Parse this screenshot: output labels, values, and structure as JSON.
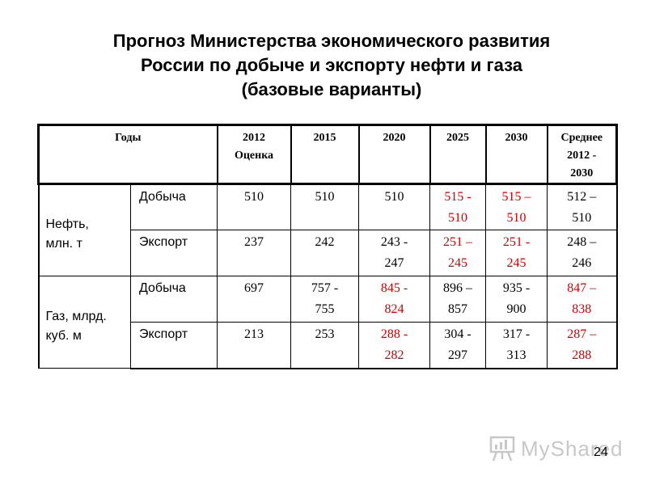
{
  "slide": {
    "title_line1": "Прогноз Министерства экономического развития",
    "title_line2": "России по добыче и экспорту нефти и газа",
    "title_line3": "(базовые варианты)",
    "page_number": "24",
    "watermark": "MyShared"
  },
  "table": {
    "headers": {
      "years": "Годы",
      "y2012_line1": "2012",
      "y2012_line2": "Оценка",
      "y2015": "2015",
      "y2020": "2020",
      "y2025": "2025",
      "y2030": "2030",
      "avg_line1": "Среднее",
      "avg_line2": "2012 -",
      "avg_line3": "2030"
    },
    "groups": {
      "oil_line1": "Нефть,",
      "oil_line2": "млн. т",
      "gas_line1": "Газ, млрд.",
      "gas_line2": "куб. м"
    },
    "types": {
      "production": "Добыча",
      "export": "Экспорт"
    },
    "oil_production": {
      "y2012": "510",
      "y2015": "510",
      "y2020": "510",
      "y2025_a": "515 -",
      "y2025_b": "510",
      "y2030_a": "515 –",
      "y2030_b": "510",
      "avg_a": "512 –",
      "avg_b": "510"
    },
    "oil_export": {
      "y2012": "237",
      "y2015": "242",
      "y2020_a": "243 -",
      "y2020_b": "247",
      "y2025_a": "251 –",
      "y2025_b": "245",
      "y2030_a": "251 -",
      "y2030_b": "245",
      "avg_a": "248 –",
      "avg_b": "246"
    },
    "gas_production": {
      "y2012": "697",
      "y2015_a": "757 -",
      "y2015_b": "755",
      "y2020_a": "845 -",
      "y2020_b": "824",
      "y2025_a": "896 –",
      "y2025_b": "857",
      "y2030_a": "935 -",
      "y2030_b": "900",
      "avg_a": "847 –",
      "avg_b": "838"
    },
    "gas_export": {
      "y2012": "213",
      "y2015": "253",
      "y2020_a": "288 -",
      "y2020_b": "282",
      "y2025_a": "304 -",
      "y2025_b": "297",
      "y2030_a": "317 -",
      "y2030_b": "313",
      "avg_a": "287 –",
      "avg_b": "288"
    },
    "colors": {
      "highlight": "#cc0000",
      "normal": "#000000"
    }
  }
}
